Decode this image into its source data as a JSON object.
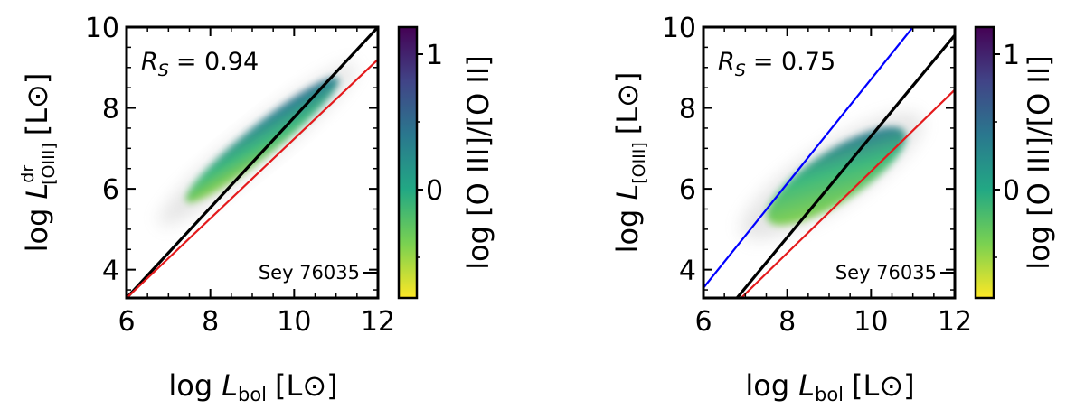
{
  "chart_data": [
    {
      "type": "scatter",
      "panel": "left",
      "xlabel": {
        "main": "log",
        "var": "L",
        "sub": "bol",
        "unit": "[L⊙]"
      },
      "ylabel": {
        "main": "log",
        "var": "L",
        "sup": "dr",
        "sub": "[OIII]",
        "unit": "[L⊙]"
      },
      "xlim": [
        6,
        12
      ],
      "ylim": [
        3.3,
        10
      ],
      "x_ticks": [
        "6",
        "8",
        "10",
        "12"
      ],
      "y_ticks": [
        "4",
        "6",
        "8",
        "10"
      ],
      "annotation": {
        "symbol": "R",
        "sub": "S",
        "value": "= 0.94"
      },
      "sample_label": "Sey 76035",
      "lines": [
        {
          "color": "#000000",
          "x": [
            6,
            12
          ],
          "y": [
            3.3,
            10
          ]
        },
        {
          "color": "#e41a1c",
          "x": [
            6,
            12
          ],
          "y": [
            3.3,
            9.2
          ]
        }
      ],
      "density_cloud": {
        "x_range": [
          6.4,
          10.8
        ],
        "y_range": [
          4.8,
          8.8
        ]
      },
      "colorbar": {
        "label": "log [O III]/[O II]",
        "range": [
          -0.8,
          1.2
        ],
        "ticks": [
          "0",
          "1"
        ],
        "colormap": "viridis_r"
      }
    },
    {
      "type": "scatter",
      "panel": "right",
      "xlabel": {
        "main": "log",
        "var": "L",
        "sub": "bol",
        "unit": "[L⊙]"
      },
      "ylabel": {
        "main": "log",
        "var": "L",
        "sub": "[OIII]",
        "unit": "[L⊙]"
      },
      "xlim": [
        6,
        12
      ],
      "ylim": [
        3.3,
        10
      ],
      "x_ticks": [
        "6",
        "8",
        "10",
        "12"
      ],
      "y_ticks": [
        "4",
        "6",
        "8",
        "10"
      ],
      "annotation": {
        "symbol": "R",
        "sub": "S",
        "value": "= 0.75"
      },
      "sample_label": "Sey 76035",
      "lines": [
        {
          "color": "#0000ff",
          "x": [
            6,
            11
          ],
          "y": [
            3.55,
            10
          ]
        },
        {
          "color": "#000000",
          "x": [
            6.8,
            12
          ],
          "y": [
            3.3,
            9.8
          ]
        },
        {
          "color": "#e41a1c",
          "x": [
            6.9,
            12
          ],
          "y": [
            3.3,
            8.45
          ]
        }
      ],
      "density_cloud": {
        "x_range": [
          7.2,
          10.8
        ],
        "y_range": [
          4.6,
          8.3
        ]
      },
      "colorbar": {
        "label": "log [O III]/[O II]",
        "range": [
          -0.8,
          1.2
        ],
        "ticks": [
          "0",
          "1"
        ],
        "colormap": "viridis_r"
      }
    }
  ]
}
